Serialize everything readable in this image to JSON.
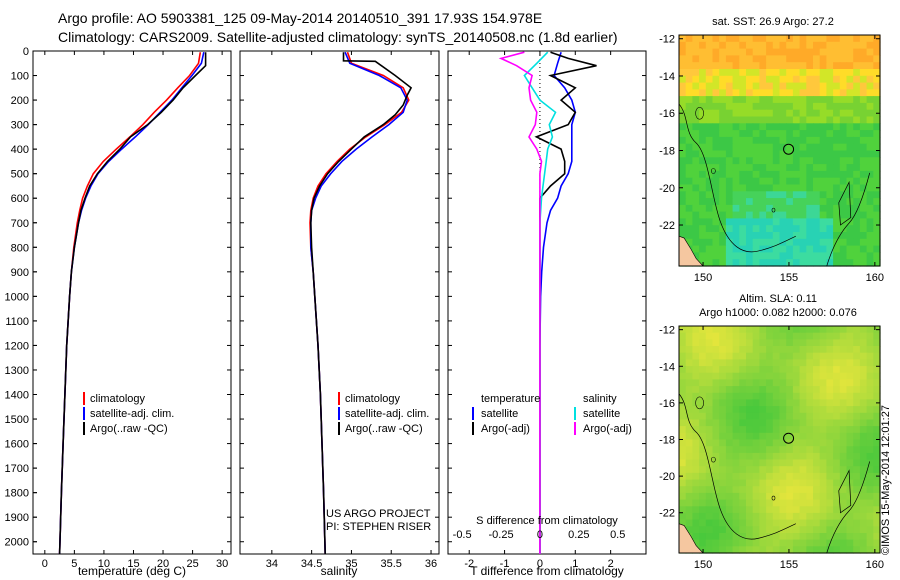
{
  "header": {
    "line1": "Argo profile: AO 5903381_125 09-May-2014 20140510_391 17.93S 154.978E",
    "line2": "Climatology: CARS2009. Satellite-adjusted climatology: synTS_20140508.nc (1.8d earlier)"
  },
  "colors": {
    "climatology": "#ff0000",
    "satellite": "#0000ff",
    "argo": "#000000",
    "sal_satellite": "#00e0e0",
    "sal_argo": "#ff00ff"
  },
  "depth_axis": {
    "range": [
      0,
      2050
    ],
    "ticks": [
      "0",
      "100",
      "200",
      "300",
      "400",
      "500",
      "600",
      "700",
      "800",
      "900",
      "1000",
      "1100",
      "1200",
      "1300",
      "1400",
      "1500",
      "1600",
      "1700",
      "1800",
      "1900",
      "2000"
    ]
  },
  "chart_data": [
    {
      "type": "line",
      "id": "temperature",
      "xlabel": "temperature (deg C)",
      "xlim": [
        -2,
        31.5
      ],
      "xticks": [
        "0",
        "5",
        "10",
        "15",
        "20",
        "25",
        "30"
      ],
      "ylim": [
        0,
        2050
      ],
      "legend": [
        "climatology",
        "satellite-adj. clim.",
        "Argo(..raw -QC)"
      ],
      "series": [
        {
          "name": "climatology",
          "depth": [
            5,
            50,
            100,
            150,
            200,
            250,
            300,
            350,
            400,
            450,
            500,
            550,
            600,
            650,
            700,
            800,
            900,
            1000,
            1200,
            1400,
            1600,
            1800,
            2050
          ],
          "values": [
            26.3,
            26.0,
            24.5,
            22.5,
            20.6,
            18.5,
            16.6,
            14.4,
            12.1,
            9.9,
            8.2,
            7.2,
            6.4,
            5.9,
            5.5,
            4.9,
            4.5,
            4.2,
            3.7,
            3.4,
            3.1,
            2.8,
            2.5
          ]
        },
        {
          "name": "satellite-adj. clim.",
          "depth": [
            5,
            50,
            100,
            150,
            200,
            250,
            300,
            350,
            400,
            450,
            500,
            550,
            600,
            650,
            700,
            800,
            900,
            1000,
            1200,
            1400,
            1600,
            1800,
            2050
          ],
          "values": [
            26.9,
            26.5,
            24.9,
            23.2,
            21.5,
            19.5,
            17.5,
            15.3,
            13.0,
            10.8,
            9.0,
            7.8,
            6.9,
            6.2,
            5.7,
            5.0,
            4.5,
            4.2,
            3.7,
            3.4,
            3.1,
            2.8,
            2.5
          ]
        },
        {
          "name": "Argo(..raw -QC)",
          "depth": [
            5,
            60,
            100,
            150,
            200,
            250,
            300,
            350,
            400,
            450,
            500,
            550,
            600,
            650,
            700,
            800,
            900,
            1000,
            1200,
            1400,
            1600,
            1800,
            2050
          ],
          "values": [
            27.2,
            27.2,
            25.5,
            23.4,
            21.7,
            19.7,
            17.4,
            14.5,
            12.7,
            10.6,
            8.9,
            7.6,
            6.8,
            6.1,
            5.7,
            5.0,
            4.5,
            4.2,
            3.7,
            3.4,
            3.1,
            2.8,
            2.5
          ]
        }
      ]
    },
    {
      "type": "line",
      "id": "salinity",
      "xlabel": "salinity",
      "xlim": [
        33.6,
        36.1
      ],
      "xticks": [
        "34",
        "34.5",
        "35",
        "35.5",
        "36"
      ],
      "ylim": [
        0,
        2050
      ],
      "legend": [
        "climatology",
        "satellite-adj. clim.",
        "Argo(..raw -QC)"
      ],
      "series": [
        {
          "name": "climatology",
          "depth": [
            5,
            50,
            100,
            150,
            200,
            250,
            300,
            350,
            400,
            450,
            500,
            550,
            600,
            650,
            700,
            800,
            900,
            1000,
            1200,
            1400,
            1600,
            1800,
            2050
          ],
          "values": [
            34.95,
            35.0,
            35.4,
            35.65,
            35.72,
            35.63,
            35.42,
            35.18,
            34.98,
            34.82,
            34.68,
            34.58,
            34.52,
            34.49,
            34.48,
            34.49,
            34.52,
            34.54,
            34.58,
            34.61,
            34.63,
            34.65,
            34.67
          ]
        },
        {
          "name": "satellite-adj. clim.",
          "depth": [
            5,
            50,
            100,
            150,
            200,
            250,
            300,
            350,
            400,
            450,
            500,
            550,
            600,
            650,
            700,
            800,
            900,
            1000,
            1200,
            1400,
            1600,
            1800,
            2050
          ],
          "values": [
            34.92,
            34.98,
            35.35,
            35.62,
            35.7,
            35.65,
            35.47,
            35.26,
            35.06,
            34.88,
            34.74,
            34.62,
            34.55,
            34.5,
            34.49,
            34.49,
            34.52,
            34.54,
            34.58,
            34.61,
            34.63,
            34.65,
            34.67
          ]
        },
        {
          "name": "Argo(..raw -QC)",
          "depth": [
            5,
            40,
            42,
            100,
            150,
            180,
            220,
            260,
            300,
            350,
            400,
            450,
            500,
            550,
            600,
            650,
            700,
            800,
            900,
            1000,
            1200,
            1400,
            1600,
            1800,
            2050
          ],
          "values": [
            34.9,
            34.9,
            35.3,
            35.55,
            35.75,
            35.7,
            35.65,
            35.55,
            35.4,
            35.16,
            35.0,
            34.84,
            34.7,
            34.6,
            34.53,
            34.5,
            34.49,
            34.5,
            34.52,
            34.54,
            34.58,
            34.61,
            34.63,
            34.65,
            34.67
          ]
        }
      ],
      "annotations": [
        "US ARGO PROJECT",
        "PI: STEPHEN RISER"
      ]
    },
    {
      "type": "line",
      "id": "difference",
      "xlabel": "T difference from climatology",
      "x2label": "S difference from climatology",
      "xlim": [
        -2.6,
        3.0
      ],
      "xticks": [
        "-2",
        "-1",
        "0",
        "1",
        "2"
      ],
      "x2ticks": [
        "-0.5",
        "-0.25",
        "0",
        "0.25",
        "0.5"
      ],
      "ylim": [
        0,
        2050
      ],
      "legend_titles": [
        "temperature",
        "salinity"
      ],
      "legend": [
        "satellite",
        "Argo(-adj)",
        "satellite",
        "Argo(-adj)"
      ],
      "series": [
        {
          "name": "temperature satellite",
          "depth": [
            5,
            50,
            100,
            150,
            200,
            250,
            300,
            350,
            400,
            450,
            500,
            550,
            600,
            650,
            700,
            800,
            900,
            1000,
            1200,
            1600,
            2050
          ],
          "values": [
            0.6,
            0.5,
            0.4,
            0.7,
            0.9,
            1.0,
            0.9,
            0.9,
            0.9,
            0.9,
            0.8,
            0.6,
            0.5,
            0.3,
            0.2,
            0.1,
            0.05,
            0.02,
            0.0,
            0.0,
            0.0
          ]
        },
        {
          "name": "temperature Argo(-adj)",
          "depth": [
            5,
            30,
            60,
            100,
            150,
            200,
            250,
            300,
            350,
            400,
            450,
            500,
            550,
            600,
            650,
            700,
            800,
            900,
            1000,
            1200,
            1600,
            2050
          ],
          "values": [
            0.3,
            0.8,
            1.6,
            0.3,
            1.0,
            0.6,
            1.0,
            0.8,
            -0.1,
            0.6,
            0.7,
            0.7,
            0.3,
            0.0,
            0.0,
            0.0,
            0.0,
            0.0,
            0.0,
            0.0,
            0.0,
            0.0
          ]
        },
        {
          "name": "salinity satellite",
          "depth": [
            5,
            50,
            100,
            150,
            200,
            250,
            300,
            350,
            400,
            450,
            500,
            550,
            600,
            700,
            800,
            1000,
            1300,
            1600,
            2050
          ],
          "values": [
            0.05,
            -0.02,
            -0.1,
            -0.05,
            0.0,
            0.1,
            0.06,
            0.08,
            0.05,
            0.04,
            0.03,
            0.02,
            0.01,
            0.0,
            0.0,
            0.0,
            0.0,
            0.0,
            0.0
          ]
        },
        {
          "name": "salinity Argo(-adj)",
          "depth": [
            5,
            30,
            60,
            100,
            150,
            200,
            250,
            300,
            350,
            400,
            450,
            500,
            550,
            600,
            700,
            1000,
            1300,
            1600,
            2050
          ],
          "values": [
            -0.1,
            -0.25,
            -0.15,
            -0.05,
            -0.07,
            -0.06,
            -0.02,
            -0.03,
            -0.07,
            -0.02,
            0.01,
            0.0,
            0.0,
            0.0,
            0.0,
            0.0,
            0.0,
            0.0,
            0.0
          ]
        }
      ]
    },
    {
      "type": "heatmap",
      "id": "sst-map",
      "title": "sat. SST: 26.9 Argo: 27.2",
      "xticks": [
        "150",
        "155",
        "160"
      ],
      "yticks": [
        "-12",
        "-14",
        "-16",
        "-18",
        "-20",
        "-22"
      ],
      "xlim": [
        148.6,
        160.3
      ],
      "ylim": [
        -24.2,
        -11.8
      ],
      "marker": {
        "lon": 154.978,
        "lat": -17.93
      }
    },
    {
      "type": "heatmap",
      "id": "sla-map",
      "title": "Altim. SLA: 0.11",
      "subtitle": "Argo h1000: 0.082 h2000: 0.076",
      "xticks": [
        "150",
        "155",
        "160"
      ],
      "yticks": [
        "-12",
        "-14",
        "-16",
        "-18",
        "-20",
        "-22"
      ],
      "xlim": [
        148.6,
        160.3
      ],
      "ylim": [
        -24.2,
        -11.8
      ],
      "marker": {
        "lon": 154.978,
        "lat": -17.93
      }
    }
  ],
  "footer": {
    "stamp": "©IMOS 15-May-2014 12:01:27"
  }
}
